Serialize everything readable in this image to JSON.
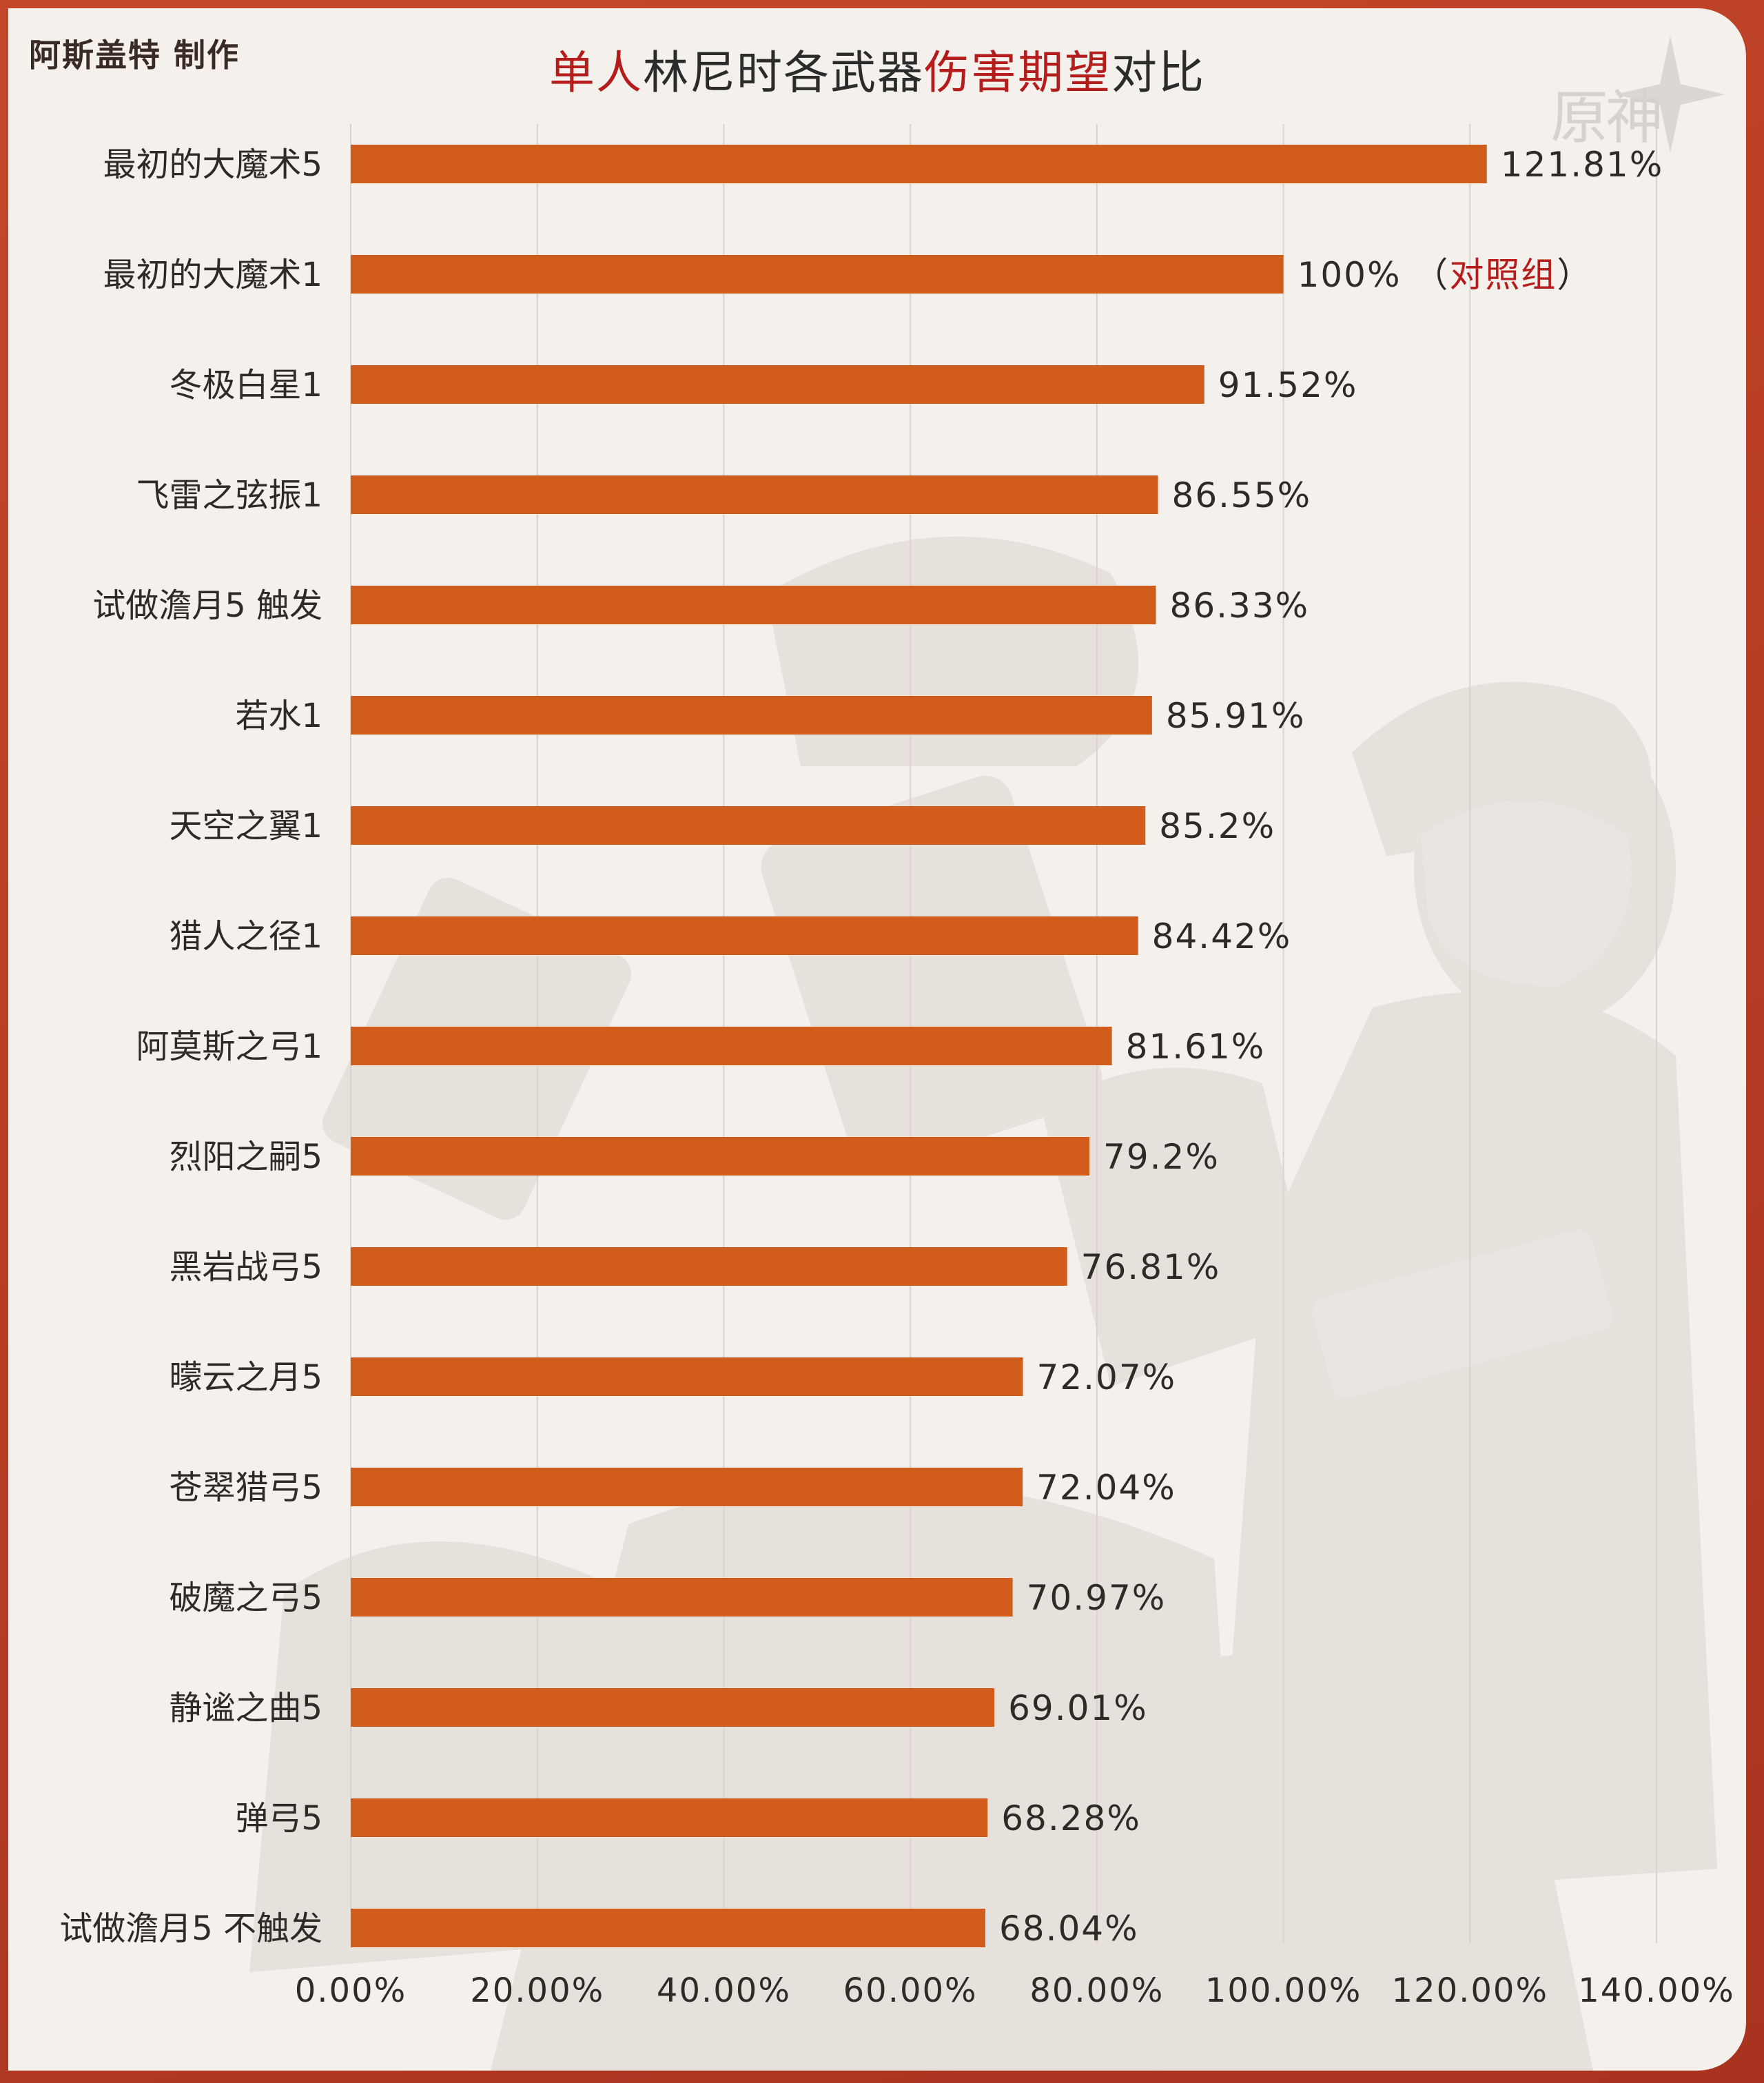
{
  "header": {
    "credit": "阿斯盖特 制作",
    "title_parts": [
      {
        "text": "单人",
        "highlight": true
      },
      {
        "text": "林尼时各武器",
        "highlight": false
      },
      {
        "text": "伤害期望",
        "highlight": true
      },
      {
        "text": "对比",
        "highlight": false
      }
    ],
    "logo_text": "原神"
  },
  "chart_data": {
    "type": "bar",
    "orientation": "horizontal",
    "title": "单人林尼时各武器伤害期望对比",
    "categories": [
      "最初的大魔术5",
      "最初的大魔术1",
      "冬极白星1",
      "飞雷之弦振1",
      "试做澹月5 触发",
      "若水1",
      "天空之翼1",
      "猎人之径1",
      "阿莫斯之弓1",
      "烈阳之嗣5",
      "黑岩战弓5",
      "曚云之月5",
      "苍翠猎弓5",
      "破魔之弓5",
      "静谧之曲5",
      "弹弓5",
      "试做澹月5 不触发"
    ],
    "values": [
      121.81,
      100,
      91.52,
      86.55,
      86.33,
      85.91,
      85.2,
      84.42,
      81.61,
      79.2,
      76.81,
      72.07,
      72.04,
      70.97,
      69.01,
      68.28,
      68.04
    ],
    "value_labels": [
      "121.81%",
      "100%",
      "91.52%",
      "86.55%",
      "86.33%",
      "85.91%",
      "85.2%",
      "84.42%",
      "81.61%",
      "79.2%",
      "76.81%",
      "72.07%",
      "72.04%",
      "70.97%",
      "69.01%",
      "68.28%",
      "68.04%"
    ],
    "annotations": [
      {
        "category": "最初的大魔术1",
        "open": " （",
        "text": "对照组",
        "close": "）"
      }
    ],
    "xlim": [
      0,
      140
    ],
    "x_ticks": [
      "0.00%",
      "20.00%",
      "40.00%",
      "60.00%",
      "80.00%",
      "100.00%",
      "120.00%",
      "140.00%"
    ],
    "x_tick_values": [
      0,
      20,
      40,
      60,
      80,
      100,
      120,
      140
    ],
    "bar_color": "#d25c1c",
    "highlight_color": "#b51c1c",
    "grid": "vertical",
    "grid_color": "#d9d3cd",
    "xlabel": "",
    "ylabel": ""
  }
}
